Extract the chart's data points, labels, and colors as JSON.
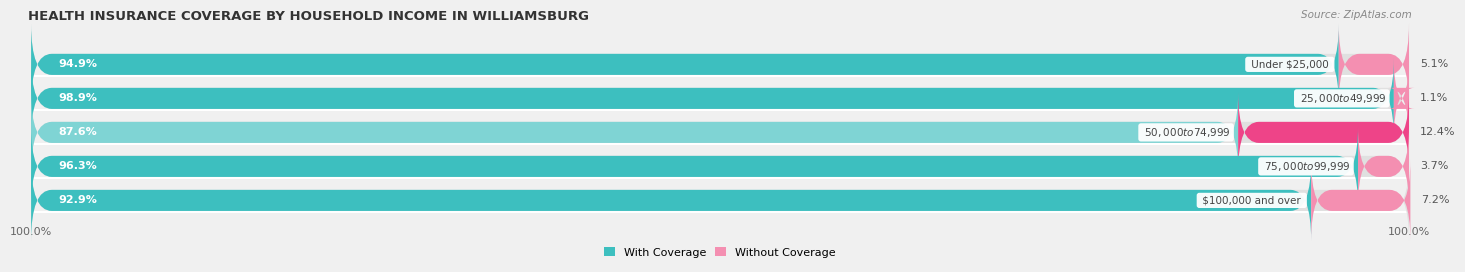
{
  "title": "HEALTH INSURANCE COVERAGE BY HOUSEHOLD INCOME IN WILLIAMSBURG",
  "source": "Source: ZipAtlas.com",
  "categories": [
    "Under $25,000",
    "$25,000 to $49,999",
    "$50,000 to $74,999",
    "$75,000 to $99,999",
    "$100,000 and over"
  ],
  "with_coverage": [
    94.9,
    98.9,
    87.6,
    96.3,
    92.9
  ],
  "without_coverage": [
    5.1,
    1.1,
    12.4,
    3.7,
    7.2
  ],
  "with_coverage_colors": [
    "#3DBFBF",
    "#3DBFBF",
    "#7FD4D4",
    "#3DBFBF",
    "#3DBFBF"
  ],
  "without_coverage_colors": [
    "#F48FB1",
    "#F48FB1",
    "#EE4488",
    "#F48FB1",
    "#F48FB1"
  ],
  "background_color": "#f0f0f0",
  "bar_background": "#e0e0e0",
  "bar_height": 0.62,
  "xlim": [
    0,
    100
  ],
  "title_fontsize": 9.5,
  "label_fontsize": 8,
  "tick_fontsize": 8,
  "source_fontsize": 7.5
}
